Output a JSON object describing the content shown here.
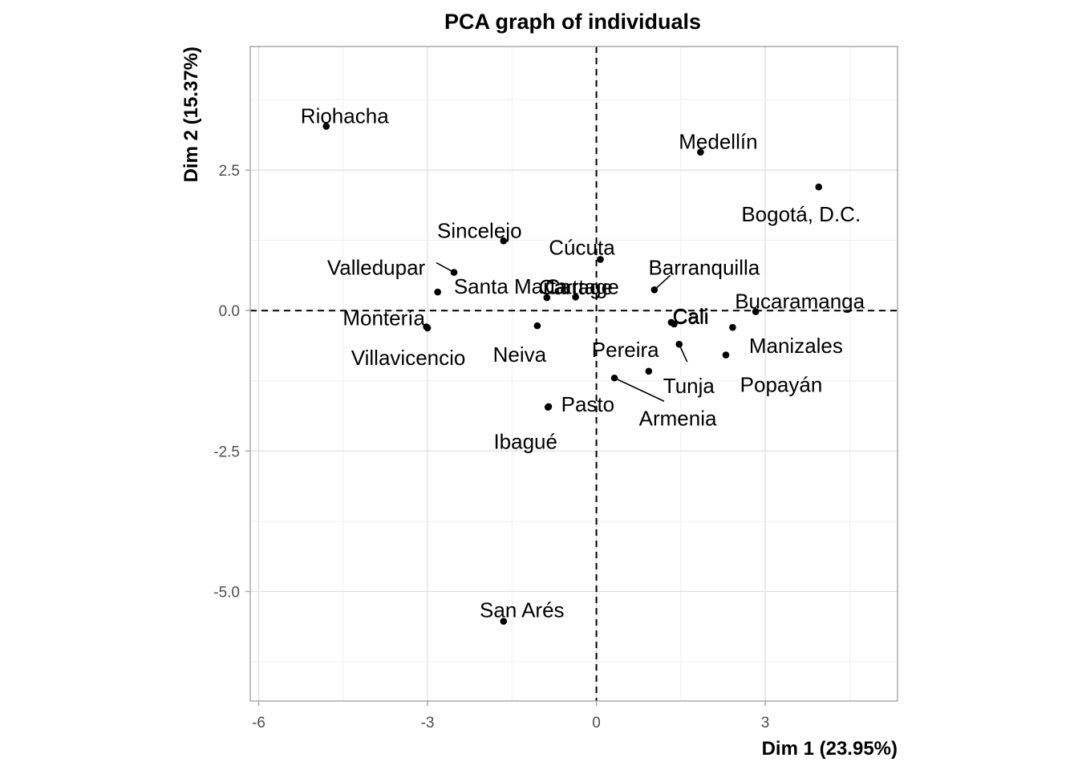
{
  "chart_data": {
    "type": "scatter",
    "title": "PCA graph of individuals",
    "xlabel": "Dim 1 (23.95%)",
    "ylabel": "Dim 2 (15.37%)",
    "xlim": [
      -6.15,
      5.35
    ],
    "ylim": [
      -6.95,
      4.7
    ],
    "x_ticks": [
      -6,
      -3,
      0,
      3
    ],
    "x_tick_labels": [
      "-6",
      "-3",
      "0",
      "3"
    ],
    "y_ticks": [
      2.5,
      0,
      -2.5,
      -5
    ],
    "y_tick_labels": [
      "2.5",
      "0.0",
      "-2.5",
      "-5.0"
    ],
    "reference_lines": {
      "x": 0,
      "y": 0,
      "style": "dashed"
    },
    "grid": true,
    "legend": "none",
    "points": [
      {
        "label": "Riohacha",
        "x": -4.8,
        "y": 3.28
      },
      {
        "label": "Medellín",
        "x": 1.85,
        "y": 2.82
      },
      {
        "label": "Bogotá, D.C.",
        "x": 3.95,
        "y": 2.2
      },
      {
        "label": "Sincelejo",
        "x": -1.65,
        "y": 1.24
      },
      {
        "label": "Cúcuta",
        "x": 0.07,
        "y": 0.91
      },
      {
        "label": "Valledupar",
        "x": -2.53,
        "y": 0.68
      },
      {
        "label": "Barranquilla",
        "x": 1.03,
        "y": 0.37
      },
      {
        "label": "Santa Marta",
        "x": -2.82,
        "y": 0.33
      },
      {
        "label": "Cartage",
        "x": -0.88,
        "y": 0.23
      },
      {
        "label": "Cartage",
        "x": -0.37,
        "y": 0.24
      },
      {
        "label": "Bucaramanga",
        "x": 2.83,
        "y": -0.02
      },
      {
        "label": "Cali",
        "x": 1.33,
        "y": -0.21
      },
      {
        "label": "Cali",
        "x": 1.38,
        "y": -0.24
      },
      {
        "label": "Montería",
        "x": -3.02,
        "y": -0.29
      },
      {
        "label": "Neiva",
        "x": -1.05,
        "y": -0.27
      },
      {
        "label": "Manizales",
        "x": 2.42,
        "y": -0.3
      },
      {
        "label": "Villavicencio",
        "x": -3.0,
        "y": -0.31
      },
      {
        "label": "Pereira",
        "x": 1.47,
        "y": -0.6
      },
      {
        "label": "Popayán",
        "x": 2.3,
        "y": -0.79
      },
      {
        "label": "Tunja",
        "x": 0.93,
        "y": -1.08
      },
      {
        "label": "Armenia",
        "x": 0.32,
        "y": -1.2
      },
      {
        "label": "Pasto",
        "x": -0.85,
        "y": -1.71
      },
      {
        "label": "Ibagué",
        "x": -0.86,
        "y": -1.72
      },
      {
        "label": "San Arés",
        "x": -1.65,
        "y": -5.53
      }
    ]
  }
}
